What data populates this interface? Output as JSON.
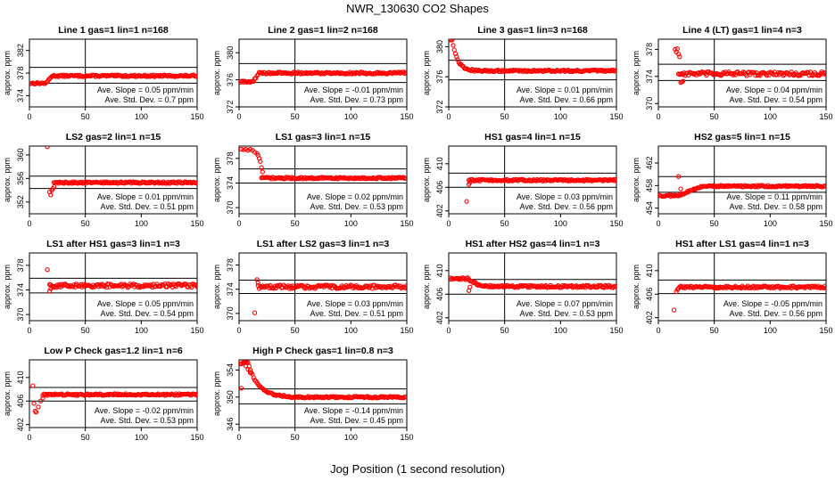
{
  "title": "NWR_130630  CO2 Shapes",
  "xlabel": "Jog Position (1 second resolution)",
  "colors": {
    "points": "#ff0000",
    "lines": "#000000"
  },
  "slope_prefix": "Ave. Slope = ",
  "slope_unit": " ppm/min",
  "sd_prefix": "Ave. Std. Dev. = ",
  "sd_unit": " ppm",
  "chart_data": [
    {
      "type": "scatter",
      "title": "Line 1 gas=1 lin=1 n=168",
      "ylabel": "approx. ppm",
      "xlim": [
        0,
        150
      ],
      "xticks": [
        0,
        50,
        100,
        150
      ],
      "ylim": [
        372,
        384
      ],
      "yticks": [
        374,
        378,
        382
      ],
      "hlines": [
        376.2,
        379.0
      ],
      "vline": 50,
      "slope": "0.05",
      "sd": "0.7",
      "shape": "rise",
      "base": 377.5,
      "start": 376.2,
      "trans": [
        15,
        20
      ],
      "noise": 0.15,
      "outliers": []
    },
    {
      "type": "scatter",
      "title": "Line 2 gas=1 lin=2 n=168",
      "ylabel": "approx. ppm",
      "xlim": [
        0,
        150
      ],
      "xticks": [
        0,
        50,
        100,
        150
      ],
      "ylim": [
        372,
        382
      ],
      "yticks": [
        372,
        376,
        380
      ],
      "hlines": [
        375.6,
        378.4
      ],
      "vline": 50,
      "slope": "-0.01",
      "sd": "0.73",
      "shape": "rise",
      "base": 377.0,
      "start": 375.7,
      "trans": [
        12,
        18
      ],
      "noise": 0.15,
      "outliers": []
    },
    {
      "type": "scatter",
      "title": "Line 3 gas=1 lin=3 n=168",
      "ylabel": "approx. ppm",
      "xlim": [
        0,
        150
      ],
      "xticks": [
        0,
        50,
        100,
        150
      ],
      "ylim": [
        372,
        381
      ],
      "yticks": [
        372,
        376,
        380
      ],
      "hlines": [
        375.6,
        378.2
      ],
      "vline": 50,
      "slope": "0.01",
      "sd": "0.66",
      "shape": "decay",
      "base": 376.8,
      "start": 381.0,
      "trans": [
        3,
        22
      ],
      "noise": 0.12,
      "outliers": []
    },
    {
      "type": "scatter",
      "title": "Line 4 (LT) gas=1 lin=4 n=3",
      "ylabel": "approx. ppm",
      "xlim": [
        0,
        150
      ],
      "xticks": [
        0,
        50,
        100,
        150
      ],
      "ylim": [
        369.5,
        379.5
      ],
      "yticks": [
        370,
        374,
        378
      ],
      "hlines": [
        373.4,
        375.8
      ],
      "vline": 50,
      "slope": "0.04",
      "sd": "0.54",
      "shape": "flat",
      "base": 374.4,
      "start": 374.4,
      "trans": [
        18,
        20
      ],
      "noise": 0.3,
      "outliers": [
        [
          15,
          378.0
        ],
        [
          16,
          377.6
        ],
        [
          17,
          378.1
        ],
        [
          18,
          377.3
        ],
        [
          19,
          376.9
        ],
        [
          20,
          373.1
        ],
        [
          21,
          373.2
        ],
        [
          22,
          373.3
        ]
      ]
    },
    {
      "type": "scatter",
      "title": "LS2 gas=2 lin=1 n=15",
      "ylabel": "approx. ppm",
      "xlim": [
        0,
        150
      ],
      "xticks": [
        0,
        50,
        100,
        150
      ],
      "ylim": [
        350,
        361.5
      ],
      "yticks": [
        352,
        356,
        360
      ],
      "hlines": [
        354.3,
        356.4
      ],
      "vline": 50,
      "slope": "0.01",
      "sd": "0.51",
      "shape": "flat",
      "base": 355.3,
      "start": 355.3,
      "trans": [
        22,
        24
      ],
      "noise": 0.15,
      "outliers": [
        [
          16,
          361.4
        ],
        [
          18,
          353.7
        ],
        [
          19,
          353.2
        ],
        [
          20,
          354.0
        ],
        [
          21,
          354.3
        ],
        [
          22,
          354.6
        ]
      ]
    },
    {
      "type": "scatter",
      "title": "LS1 gas=3 lin=1 n=15",
      "ylabel": "approx. ppm",
      "xlim": [
        0,
        150
      ],
      "xticks": [
        0,
        50,
        100,
        150
      ],
      "ylim": [
        369,
        380
      ],
      "yticks": [
        370,
        374,
        378
      ],
      "hlines": [
        374.0,
        376.3
      ],
      "vline": 50,
      "slope": "0.02",
      "sd": "0.53",
      "shape": "flat",
      "base": 374.8,
      "start": 374.8,
      "trans": [
        20,
        22
      ],
      "noise": 0.15,
      "outliers": [
        [
          2,
          379.5
        ],
        [
          4,
          379.4
        ],
        [
          6,
          379.5
        ],
        [
          8,
          379.3
        ],
        [
          10,
          379.5
        ],
        [
          12,
          379.3
        ],
        [
          14,
          379.0
        ],
        [
          16,
          378.8
        ],
        [
          17,
          378.5
        ],
        [
          18,
          378.0
        ],
        [
          19,
          377.5
        ],
        [
          20,
          376.5
        ],
        [
          21,
          375.8
        ]
      ]
    },
    {
      "type": "scatter",
      "title": "HS1 gas=4 lin=1 n=15",
      "ylabel": "approx. ppm",
      "xlim": [
        0,
        150
      ],
      "xticks": [
        0,
        50,
        100,
        150
      ],
      "ylim": [
        401.5,
        413
      ],
      "yticks": [
        402,
        406,
        410
      ],
      "hlines": [
        406.0,
        408.4
      ],
      "vline": 50,
      "slope": "0.03",
      "sd": "0.56",
      "shape": "flat",
      "base": 407.2,
      "start": 407.2,
      "trans": [
        18,
        20
      ],
      "noise": 0.15,
      "outliers": [
        [
          16,
          403.6
        ],
        [
          18,
          406.5
        ],
        [
          19,
          406.8
        ]
      ]
    },
    {
      "type": "scatter",
      "title": "HS2 gas=5 lin=1 n=15",
      "ylabel": "approx. ppm",
      "xlim": [
        0,
        150
      ],
      "xticks": [
        0,
        50,
        100,
        150
      ],
      "ylim": [
        453,
        465
      ],
      "yticks": [
        454,
        458,
        462
      ],
      "hlines": [
        456.8,
        459.6
      ],
      "vline": 50,
      "slope": "0.11",
      "sd": "0.58",
      "shape": "rise",
      "base": 457.9,
      "start": 456.2,
      "trans": [
        17,
        40
      ],
      "noise": 0.15,
      "outliers": [
        [
          18,
          459.6
        ],
        [
          20,
          457.4
        ]
      ]
    },
    {
      "type": "scatter",
      "title": "LS1 after HS1 gas=3 lin=1 n=3",
      "ylabel": "approx. ppm",
      "xlim": [
        0,
        150
      ],
      "xticks": [
        0,
        50,
        100,
        150
      ],
      "ylim": [
        369,
        380
      ],
      "yticks": [
        370,
        374,
        378
      ],
      "hlines": [
        373.5,
        375.9
      ],
      "vline": 50,
      "slope": "0.05",
      "sd": "0.54",
      "shape": "flat",
      "base": 374.7,
      "start": 374.7,
      "trans": [
        18,
        20
      ],
      "noise": 0.3,
      "outliers": [
        [
          16,
          377.3
        ],
        [
          18,
          373.8
        ],
        [
          19,
          374.2
        ]
      ]
    },
    {
      "type": "scatter",
      "title": "LS1 after LS2 gas=3 lin=1 n=3",
      "ylabel": "approx. ppm",
      "xlim": [
        0,
        150
      ],
      "xticks": [
        0,
        50,
        100,
        150
      ],
      "ylim": [
        368.8,
        380
      ],
      "yticks": [
        370,
        374,
        378
      ],
      "hlines": [
        373.3,
        375.5
      ],
      "vline": 50,
      "slope": "0.03",
      "sd": "0.51",
      "shape": "flat",
      "base": 374.4,
      "start": 374.4,
      "trans": [
        17,
        19
      ],
      "noise": 0.3,
      "outliers": [
        [
          14,
          370.1
        ],
        [
          16,
          375.6
        ],
        [
          17,
          375.0
        ]
      ]
    },
    {
      "type": "scatter",
      "title": "HS1 after HS2 gas=4 lin=1 n=3",
      "ylabel": "approx. ppm",
      "xlim": [
        0,
        150
      ],
      "xticks": [
        0,
        50,
        100,
        150
      ],
      "ylim": [
        401.5,
        413
      ],
      "yticks": [
        402,
        406,
        410
      ],
      "hlines": [
        406.0,
        408.5
      ],
      "vline": 50,
      "slope": "0.07",
      "sd": "0.53",
      "shape": "decay",
      "base": 407.3,
      "start": 408.6,
      "trans": [
        18,
        45
      ],
      "noise": 0.2,
      "outliers": [
        [
          18,
          406.6
        ],
        [
          19,
          407.2
        ]
      ]
    },
    {
      "type": "scatter",
      "title": "HS1 after LS1 gas=4 lin=1 n=3",
      "ylabel": "approx. ppm",
      "xlim": [
        0,
        150
      ],
      "xticks": [
        0,
        50,
        100,
        150
      ],
      "ylim": [
        401.5,
        413
      ],
      "yticks": [
        402,
        406,
        410
      ],
      "hlines": [
        406.1,
        408.4
      ],
      "vline": 50,
      "slope": "-0.05",
      "sd": "0.56",
      "shape": "flat",
      "base": 407.2,
      "start": 407.2,
      "trans": [
        18,
        20
      ],
      "noise": 0.2,
      "outliers": [
        [
          14,
          403.3
        ],
        [
          16,
          406.4
        ],
        [
          17,
          406.8
        ]
      ]
    },
    {
      "type": "scatter",
      "title": "Low P Check gas=1.2 lin=1 n=6",
      "ylabel": "approx. ppm",
      "xlim": [
        0,
        150
      ],
      "xticks": [
        0,
        50,
        100,
        150
      ],
      "ylim": [
        401.5,
        413
      ],
      "yticks": [
        402,
        406,
        410
      ],
      "hlines": [
        406.0,
        408.3
      ],
      "vline": 50,
      "slope": "-0.02",
      "sd": "0.53",
      "shape": "flat",
      "base": 407.1,
      "start": 407.1,
      "trans": [
        12,
        14
      ],
      "noise": 0.15,
      "outliers": [
        [
          3,
          408.6
        ],
        [
          4,
          405.6
        ],
        [
          5,
          404.3
        ],
        [
          6,
          404.1
        ],
        [
          8,
          405.0
        ],
        [
          10,
          406.0
        ],
        [
          12,
          406.5
        ]
      ]
    },
    {
      "type": "scatter",
      "title": "High P Check gas=1 lin=0.8 n=3",
      "ylabel": "approx. ppm",
      "xlim": [
        0,
        150
      ],
      "xticks": [
        0,
        50,
        100,
        150
      ],
      "ylim": [
        345.5,
        355.5
      ],
      "yticks": [
        346,
        350,
        354
      ],
      "hlines": [
        349.0,
        351.2
      ],
      "vline": 50,
      "slope": "-0.14",
      "sd": "0.45",
      "shape": "decay",
      "base": 350.0,
      "start": 355.0,
      "trans": [
        8,
        45
      ],
      "noise": 0.12,
      "outliers": [
        [
          2,
          351.3
        ],
        [
          4,
          355.3
        ],
        [
          6,
          354.6
        ],
        [
          8,
          354.1
        ],
        [
          10,
          353.6
        ]
      ]
    }
  ]
}
